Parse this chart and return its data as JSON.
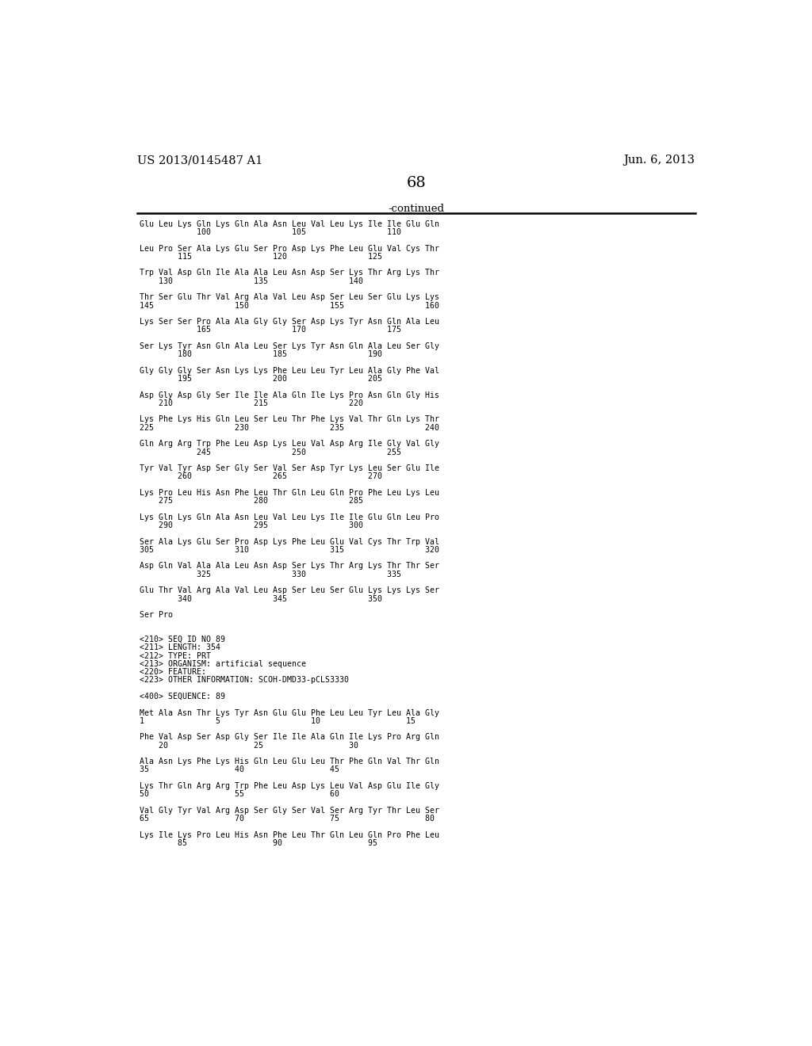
{
  "header_left": "US 2013/0145487 A1",
  "header_right": "Jun. 6, 2013",
  "page_number": "68",
  "continued_label": "-continued",
  "background_color": "#ffffff",
  "text_color": "#000000",
  "body_lines": [
    "Glu Leu Lys Gln Lys Gln Ala Asn Leu Val Leu Lys Ile Ile Glu Gln",
    "            100                 105                 110",
    "",
    "Leu Pro Ser Ala Lys Glu Ser Pro Asp Lys Phe Leu Glu Val Cys Thr",
    "        115                 120                 125",
    "",
    "Trp Val Asp Gln Ile Ala Ala Leu Asn Asp Ser Lys Thr Arg Lys Thr",
    "    130                 135                 140",
    "",
    "Thr Ser Glu Thr Val Arg Ala Val Leu Asp Ser Leu Ser Glu Lys Lys",
    "145                 150                 155                 160",
    "",
    "Lys Ser Ser Pro Ala Ala Gly Gly Ser Asp Lys Tyr Asn Gln Ala Leu",
    "            165                 170                 175",
    "",
    "Ser Lys Tyr Asn Gln Ala Leu Ser Lys Tyr Asn Gln Ala Leu Ser Gly",
    "        180                 185                 190",
    "",
    "Gly Gly Gly Ser Asn Lys Lys Phe Leu Leu Tyr Leu Ala Gly Phe Val",
    "        195                 200                 205",
    "",
    "Asp Gly Asp Gly Ser Ile Ile Ala Gln Ile Lys Pro Asn Gln Gly His",
    "    210                 215                 220",
    "",
    "Lys Phe Lys His Gln Leu Ser Leu Thr Phe Lys Val Thr Gln Lys Thr",
    "225                 230                 235                 240",
    "",
    "Gln Arg Arg Trp Phe Leu Asp Lys Leu Val Asp Arg Ile Gly Val Gly",
    "            245                 250                 255",
    "",
    "Tyr Val Tyr Asp Ser Gly Ser Val Ser Asp Tyr Lys Leu Ser Glu Ile",
    "        260                 265                 270",
    "",
    "Lys Pro Leu His Asn Phe Leu Thr Gln Leu Gln Pro Phe Leu Lys Leu",
    "    275                 280                 285",
    "",
    "Lys Gln Lys Gln Ala Asn Leu Val Leu Lys Ile Ile Glu Gln Leu Pro",
    "    290                 295                 300",
    "",
    "Ser Ala Lys Glu Ser Pro Asp Lys Phe Leu Glu Val Cys Thr Trp Val",
    "305                 310                 315                 320",
    "",
    "Asp Gln Val Ala Ala Leu Asn Asp Ser Lys Thr Arg Lys Thr Thr Ser",
    "            325                 330                 335",
    "",
    "Glu Thr Val Arg Ala Val Leu Asp Ser Leu Ser Glu Lys Lys Lys Ser",
    "        340                 345                 350",
    "",
    "Ser Pro",
    "",
    "",
    "<210> SEQ ID NO 89",
    "<211> LENGTH: 354",
    "<212> TYPE: PRT",
    "<213> ORGANISM: artificial sequence",
    "<220> FEATURE:",
    "<223> OTHER INFORMATION: SCOH-DMD33-pCLS3330",
    "",
    "<400> SEQUENCE: 89",
    "",
    "Met Ala Asn Thr Lys Tyr Asn Glu Glu Phe Leu Leu Tyr Leu Ala Gly",
    "1               5                   10                  15",
    "",
    "Phe Val Asp Ser Asp Gly Ser Ile Ile Ala Gln Ile Lys Pro Arg Gln",
    "    20                  25                  30",
    "",
    "Ala Asn Lys Phe Lys His Gln Leu Glu Leu Thr Phe Gln Val Thr Gln",
    "35                  40                  45",
    "",
    "Lys Thr Gln Arg Arg Trp Phe Leu Asp Lys Leu Val Asp Glu Ile Gly",
    "50                  55                  60",
    "",
    "Val Gly Tyr Val Arg Asp Ser Gly Ser Val Ser Arg Tyr Thr Leu Ser",
    "65                  70                  75                  80",
    "",
    "Lys Ile Lys Pro Leu His Asn Phe Leu Thr Gln Leu Gln Pro Phe Leu",
    "        85                  90                  95"
  ]
}
